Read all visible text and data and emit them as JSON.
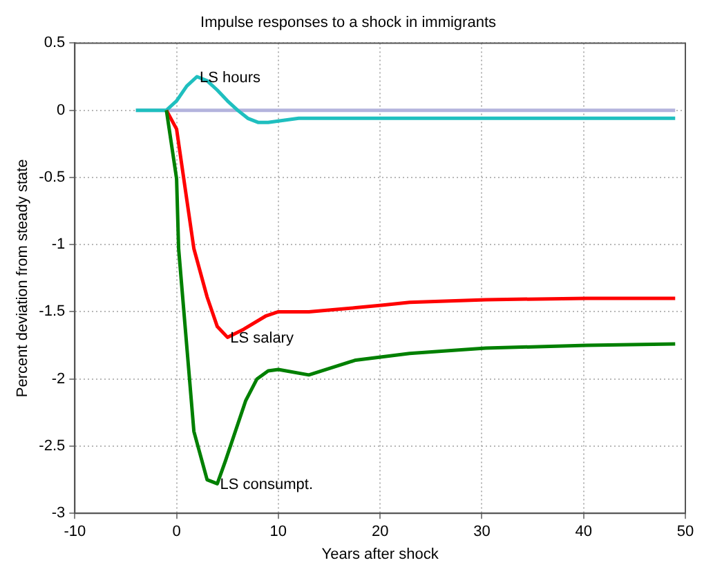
{
  "chart_data": {
    "type": "line",
    "title": "Impulse responses to a shock in immigrants",
    "xlabel": "Years after shock",
    "ylabel": "Percent deviation from steady state",
    "xlim": [
      -10,
      50
    ],
    "xticks": [
      -10,
      0,
      10,
      20,
      30,
      40,
      50
    ],
    "ylim": [
      -3,
      0.5
    ],
    "yticks": [
      -3,
      -2.5,
      -2,
      -1.5,
      -1,
      -0.5,
      0,
      0.5
    ],
    "grid": true,
    "legend": false,
    "marker": "none",
    "line_style": "solid",
    "series": [
      {
        "color": "#b3b3dd",
        "x": [
          -4,
          49
        ],
        "values": [
          0,
          0
        ]
      },
      {
        "color": "#1fbfbf",
        "x": [
          -4,
          -3,
          -2,
          -1,
          0,
          1,
          2,
          3,
          4,
          5,
          6,
          7,
          8,
          9,
          10,
          12,
          15,
          20,
          30,
          40,
          49
        ],
        "values": [
          0,
          0,
          0,
          0,
          0.07,
          0.18,
          0.25,
          0.22,
          0.15,
          0.07,
          0,
          -0.06,
          -0.09,
          -0.09,
          -0.08,
          -0.06,
          -0.06,
          -0.06,
          -0.06,
          -0.06,
          -0.06
        ]
      },
      {
        "color": "#ff0000",
        "x": [
          -1,
          0,
          1.7,
          3,
          4,
          5,
          6.6,
          8.8,
          10,
          13,
          17.6,
          20.3,
          22.9,
          30.4,
          40.3,
          49
        ],
        "values": [
          0,
          -0.14,
          -1.03,
          -1.39,
          -1.61,
          -1.69,
          -1.63,
          -1.53,
          -1.5,
          -1.5,
          -1.47,
          -1.45,
          -1.43,
          -1.41,
          -1.4,
          -1.4
        ]
      },
      {
        "color": "#008000",
        "x": [
          -1,
          0,
          0.2,
          1.7,
          3,
          4,
          4.8,
          6.8,
          7.9,
          9,
          10,
          13,
          17.6,
          22.9,
          30.4,
          40.3,
          49
        ],
        "values": [
          0,
          -0.51,
          -1.03,
          -2.39,
          -2.75,
          -2.78,
          -2.61,
          -2.16,
          -2,
          -1.94,
          -1.93,
          -1.97,
          -1.86,
          -1.81,
          -1.77,
          -1.75,
          -1.74
        ]
      }
    ],
    "annotations": [
      {
        "text": "LS hours",
        "x": 2,
        "y": 0.25
      },
      {
        "text": "LS salary",
        "x": 5,
        "y": -1.69
      },
      {
        "text": "LS consumpt.",
        "x": 4,
        "y": -2.78
      }
    ]
  }
}
